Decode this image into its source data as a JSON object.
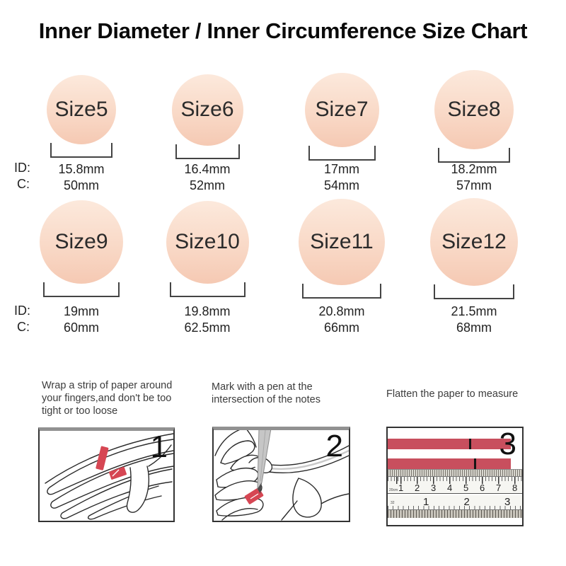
{
  "title": "Inner Diameter / Inner Circumference Size Chart",
  "axis_labels": {
    "id": "ID:",
    "c": "C:"
  },
  "sizes": [
    {
      "label": "Size5",
      "id": "15.8mm",
      "c": "50mm"
    },
    {
      "label": "Size6",
      "id": "16.4mm",
      "c": "52mm"
    },
    {
      "label": "Size7",
      "id": "17mm",
      "c": "54mm"
    },
    {
      "label": "Size8",
      "id": "18.2mm",
      "c": "57mm"
    },
    {
      "label": "Size9",
      "id": "19mm",
      "c": "60mm"
    },
    {
      "label": "Size10",
      "id": "19.8mm",
      "c": "62.5mm"
    },
    {
      "label": "Size11",
      "id": "20.8mm",
      "c": "66mm"
    },
    {
      "label": "Size12",
      "id": "21.5mm",
      "c": "68mm"
    }
  ],
  "steps": [
    {
      "num": "1",
      "text": "Wrap a strip of paper around your fingers,and don't be too tight or too loose"
    },
    {
      "num": "2",
      "text": "Mark with a pen at the intersection of the notes"
    },
    {
      "num": "3",
      "text": "Flatten the paper to measure"
    }
  ],
  "ruler": {
    "cm_numbers": [
      "1",
      "2",
      "3",
      "4",
      "5",
      "6",
      "7",
      "8"
    ],
    "cm_unit": "20cm",
    "inch_numbers": [
      "1",
      "2",
      "3"
    ],
    "inch_unit": "32"
  },
  "colors": {
    "circle_top": "#fce9dc",
    "circle_bottom": "#f5c9b3",
    "strip_red": "#c84f5e",
    "illustration_red": "#d64653"
  }
}
